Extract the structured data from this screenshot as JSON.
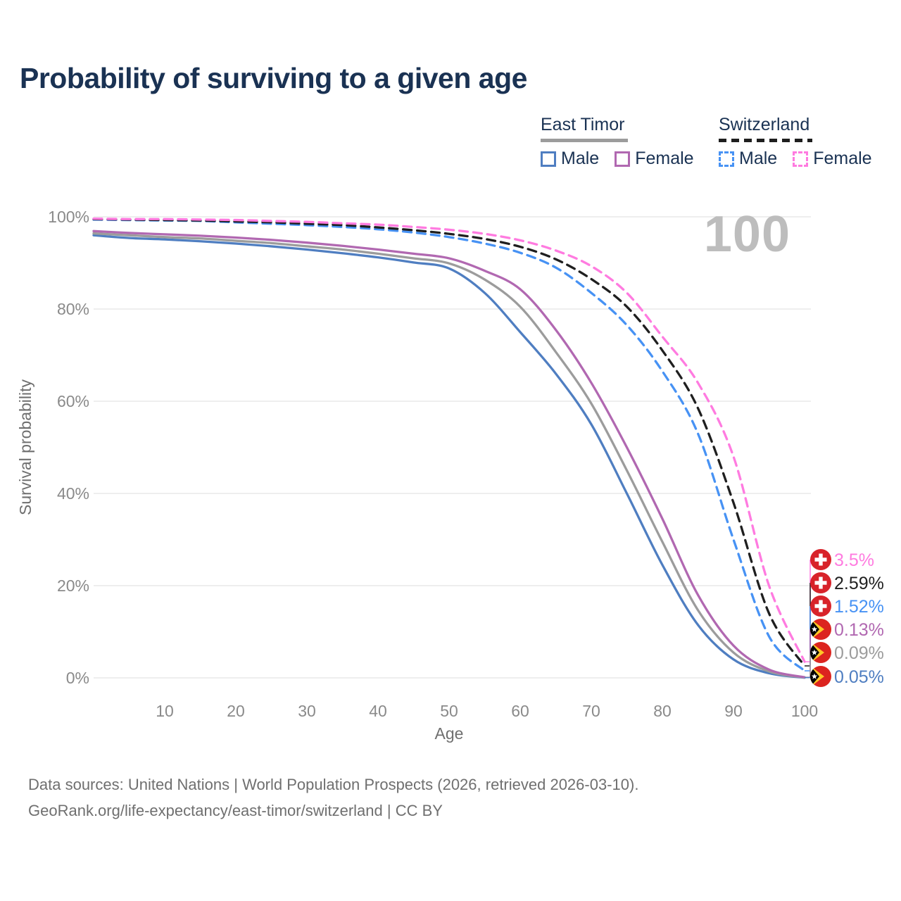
{
  "title": "Probability of surviving to a given age",
  "age_indicator": "100",
  "legend": {
    "groups": [
      {
        "label": "East Timor",
        "underline_style": "solid",
        "underline_color": "#9c9c9c",
        "items": [
          {
            "label": "Male",
            "color": "#4f7ec1",
            "dashed": false
          },
          {
            "label": "Female",
            "color": "#b168b1",
            "dashed": false
          }
        ]
      },
      {
        "label": "Switzerland",
        "underline_style": "dashed",
        "underline_color": "#1f1f1f",
        "items": [
          {
            "label": "Male",
            "color": "#4792f4",
            "dashed": true
          },
          {
            "label": "Female",
            "color": "#ff7be0",
            "dashed": true
          }
        ]
      }
    ]
  },
  "chart_data": {
    "type": "line",
    "title": "Probability of surviving to a given age",
    "xlabel": "Age",
    "ylabel": "Survival probability",
    "xlim": [
      0,
      100
    ],
    "ylim": [
      0,
      100
    ],
    "grid": "horizontal",
    "x_ticks": [
      10,
      20,
      30,
      40,
      50,
      60,
      70,
      80,
      90,
      100
    ],
    "y_ticks": [
      0,
      20,
      40,
      60,
      80,
      100
    ],
    "y_tick_suffix": "%",
    "x": [
      0,
      5,
      10,
      15,
      20,
      25,
      30,
      35,
      40,
      45,
      50,
      55,
      60,
      65,
      70,
      75,
      80,
      85,
      90,
      95,
      100
    ],
    "series": [
      {
        "name": "East Timor Male",
        "country": "east-timor",
        "flag": "timor",
        "color": "#4f7ec1",
        "dashed": false,
        "values": [
          96.0,
          95.4,
          95.1,
          94.7,
          94.2,
          93.6,
          92.9,
          92.1,
          91.2,
          90.1,
          88.8,
          83.5,
          75.0,
          66.0,
          55.0,
          40.0,
          24.5,
          11.5,
          4.0,
          1.0,
          0.05
        ],
        "end_label": "0.05%"
      },
      {
        "name": "East Timor",
        "country": "east-timor",
        "flag": "timor",
        "color": "#9c9c9c",
        "dashed": false,
        "values": [
          96.4,
          96.0,
          95.6,
          95.3,
          94.8,
          94.3,
          93.6,
          92.9,
          92.0,
          91.0,
          89.9,
          86.4,
          80.5,
          70.7,
          59.5,
          45.0,
          29.5,
          14.7,
          5.5,
          1.4,
          0.09
        ],
        "end_label": "0.09%"
      },
      {
        "name": "East Timor Female",
        "country": "east-timor",
        "flag": "timor",
        "color": "#b168b1",
        "dashed": false,
        "values": [
          96.9,
          96.5,
          96.2,
          95.9,
          95.5,
          95.0,
          94.4,
          93.7,
          92.9,
          92.0,
          91.0,
          88.3,
          84.3,
          75.5,
          64.0,
          50.0,
          34.5,
          18.0,
          7.0,
          1.8,
          0.13
        ],
        "end_label": "0.13%"
      },
      {
        "name": "Switzerland Male",
        "country": "switzerland",
        "flag": "swiss",
        "color": "#4792f4",
        "dashed": true,
        "values": [
          99.4,
          99.3,
          99.2,
          99.1,
          98.8,
          98.5,
          98.2,
          97.8,
          97.3,
          96.6,
          95.6,
          94.2,
          92.2,
          89.0,
          83.5,
          76.5,
          66.5,
          53.0,
          30.0,
          9.0,
          1.52
        ],
        "end_label": "1.52%"
      },
      {
        "name": "Switzerland",
        "country": "switzerland",
        "flag": "swiss",
        "color": "#1f1f1f",
        "dashed": true,
        "values": [
          99.5,
          99.4,
          99.3,
          99.2,
          99.0,
          98.8,
          98.5,
          98.2,
          97.7,
          97.1,
          96.3,
          95.2,
          93.5,
          90.8,
          86.5,
          80.5,
          71.0,
          58.5,
          38.0,
          14.0,
          2.59
        ],
        "end_label": "2.59%"
      },
      {
        "name": "Switzerland Female",
        "country": "switzerland",
        "flag": "swiss",
        "color": "#ff7be0",
        "dashed": true,
        "values": [
          99.6,
          99.5,
          99.5,
          99.4,
          99.3,
          99.1,
          98.9,
          98.6,
          98.3,
          97.8,
          97.2,
          96.3,
          94.9,
          92.7,
          89.3,
          83.5,
          74.0,
          64.0,
          48.0,
          20.0,
          3.5
        ],
        "end_label": "3.5%"
      }
    ]
  },
  "footer": {
    "line1": "Data sources: United Nations | World Population Prospects (2026, retrieved 2026-03-10).",
    "line2": "GeoRank.org/life-expectancy/east-timor/switzerland | CC BY"
  }
}
